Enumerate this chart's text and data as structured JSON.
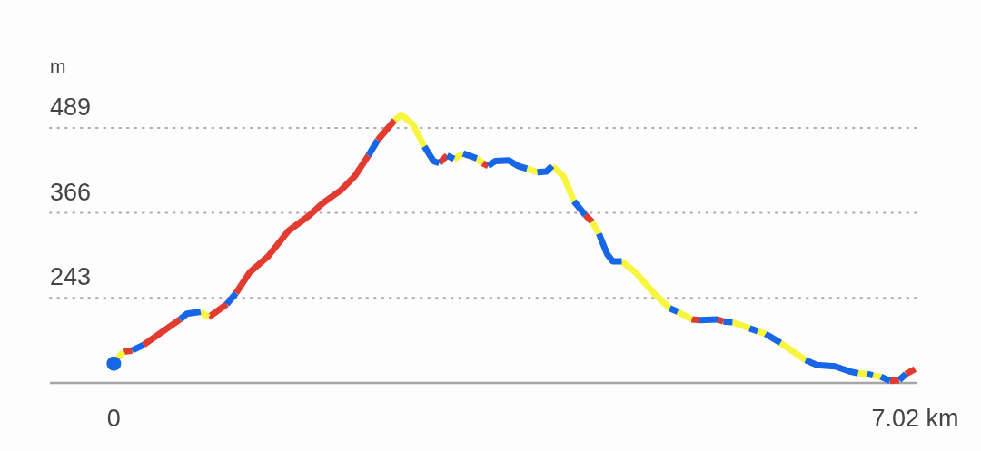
{
  "chart_data": {
    "type": "line",
    "ylabel": "m",
    "xlim": [
      -0.56,
      7.04
    ],
    "xticks": [
      0,
      {
        "value": 7.02,
        "label": "7.02 km"
      }
    ],
    "ylim": [
      120,
      674
    ],
    "yticks": [
      243,
      366,
      489
    ],
    "grid": "y",
    "line_style": "solid",
    "series": [
      {
        "color": "#e23c30",
        "x": [
          0.08,
          0.16,
          null,
          0.26,
          0.58,
          null,
          0.83,
          0.99,
          null,
          1.07,
          1.19,
          1.35,
          1.53,
          1.71,
          1.83,
          1.99,
          2.11,
          2.23,
          null,
          2.31,
          2.46,
          null,
          2.85,
          2.92,
          null,
          3.23,
          3.28,
          null,
          4.13,
          4.19,
          null,
          5.06,
          5.13,
          null,
          5.29,
          5.34,
          null,
          6.8,
          6.88,
          null,
          6.94,
          7.02
        ],
        "values": [
          165,
          167,
          null,
          175,
          212,
          null,
          215,
          234,
          null,
          250,
          280,
          303,
          340,
          362,
          380,
          399,
          419,
          449,
          null,
          471,
          500,
          null,
          438,
          449,
          null,
          438,
          434,
          null,
          363,
          353,
          null,
          212,
          211,
          null,
          212,
          209,
          null,
          123,
          124,
          null,
          133,
          140
        ]
      },
      {
        "color": "#f8f53e",
        "x": [
          0,
          0.08,
          null,
          0.76,
          0.83,
          null,
          2.46,
          2.52,
          2.62,
          2.72,
          null,
          2.98,
          3.06,
          null,
          3.18,
          3.23,
          null,
          3.62,
          3.71,
          null,
          3.84,
          3.94,
          4.03,
          null,
          4.19,
          4.25,
          null,
          4.45,
          4.57,
          4.73,
          4.87,
          null,
          4.94,
          5.06,
          null,
          5.42,
          5.57,
          null,
          5.64,
          5.71,
          null,
          5.84,
          6.06,
          null,
          6.52,
          6.6,
          null,
          6.65,
          6.72
        ],
        "values": [
          148,
          165,
          null,
          223,
          215,
          null,
          500,
          508,
          494,
          462,
          null,
          444,
          452,
          null,
          445,
          438,
          null,
          430,
          425,
          null,
          434,
          419,
          383,
          null,
          353,
          336,
          null,
          296,
          280,
          250,
          228,
          null,
          223,
          212,
          null,
          208,
          199,
          null,
          195,
          191,
          null,
          178,
          153,
          null,
          134,
          133,
          null,
          131,
          129
        ]
      },
      {
        "color": "#1766e6",
        "x": [
          0.16,
          0.26,
          null,
          0.58,
          0.64,
          0.76,
          null,
          0.99,
          1.07,
          null,
          2.23,
          2.31,
          null,
          2.72,
          2.8,
          2.85,
          null,
          2.92,
          2.98,
          null,
          3.06,
          3.18,
          null,
          3.28,
          3.34,
          3.46,
          3.54,
          3.62,
          null,
          3.71,
          3.79,
          3.84,
          null,
          4.03,
          4.13,
          null,
          4.25,
          4.32,
          4.37,
          4.45,
          null,
          4.87,
          4.94,
          null,
          5.13,
          5.29,
          null,
          5.34,
          5.42,
          null,
          5.57,
          5.64,
          null,
          5.71,
          5.84,
          null,
          6.06,
          6.16,
          6.32,
          6.44,
          6.52,
          null,
          6.6,
          6.65,
          null,
          6.72,
          6.8,
          null,
          6.88,
          6.94
        ],
        "values": [
          167,
          175,
          null,
          212,
          220,
          223,
          null,
          234,
          250,
          null,
          449,
          471,
          null,
          462,
          441,
          438,
          null,
          449,
          444,
          null,
          452,
          445,
          null,
          434,
          441,
          442,
          434,
          430,
          null,
          425,
          426,
          434,
          null,
          383,
          363,
          null,
          336,
          307,
          296,
          296,
          null,
          228,
          223,
          null,
          211,
          212,
          null,
          209,
          208,
          null,
          199,
          195,
          null,
          191,
          178,
          null,
          153,
          146,
          144,
          137,
          134,
          null,
          133,
          131,
          null,
          129,
          123,
          null,
          124,
          133
        ]
      },
      {
        "type": "scatter",
        "color": "#1766e6",
        "marker": "circle",
        "x": [
          0
        ],
        "values": [
          148
        ]
      }
    ]
  }
}
